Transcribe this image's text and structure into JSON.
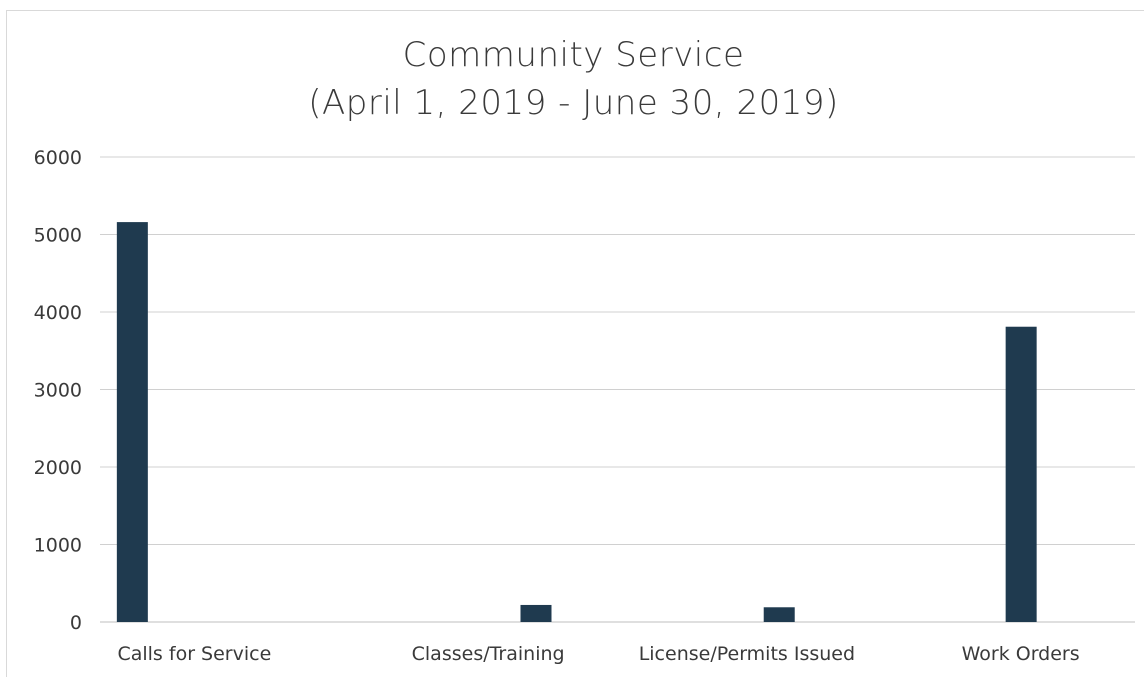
{
  "chart_data": {
    "type": "bar",
    "title": "Community Service",
    "subtitle": "(April 1, 2019 - June 30, 2019)",
    "categories": [
      "Calls for Service",
      "Classes/Training",
      "License/Permits Issued",
      "Work Orders"
    ],
    "series": [
      {
        "values": [
          5160,
          220,
          190,
          3810
        ]
      }
    ],
    "ylim": [
      0,
      6000
    ],
    "yticks": [
      0,
      1000,
      2000,
      3000,
      4000,
      5000,
      6000
    ],
    "grid": true,
    "bar_color": "#1f3a4f",
    "grid_color": "#d0d0d0"
  }
}
